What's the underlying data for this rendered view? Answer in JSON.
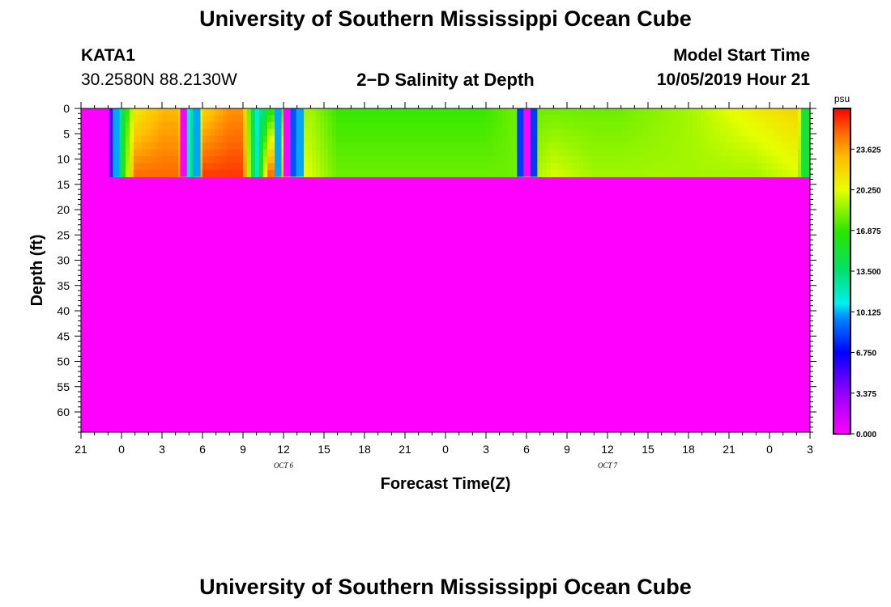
{
  "header": {
    "title": "University of Southern Mississippi Ocean Cube",
    "station": "KATA1",
    "coords": "30.2580N 88.2130W",
    "plot_title": "2−D Salinity at Depth",
    "model_start_label": "Model Start Time",
    "model_start_value": "10/05/2019 Hour 21"
  },
  "footer": {
    "title": "University of Southern Mississippi Ocean Cube"
  },
  "chart_data": {
    "type": "heatmap",
    "title": "2−D Salinity at Depth",
    "xlabel": "Forecast Time(Z)",
    "ylabel": "Depth (ft)",
    "x_tick_labels": [
      "21",
      "0",
      "3",
      "6",
      "9",
      "12",
      "15",
      "18",
      "21",
      "0",
      "3",
      "6",
      "9",
      "12",
      "15",
      "18",
      "21",
      "0",
      "3"
    ],
    "x_date_labels": [
      {
        "label": "OCT 6",
        "hours": 15
      },
      {
        "label": "OCT 7",
        "hours": 39
      }
    ],
    "x_range_hours": [
      0,
      54
    ],
    "y_tick_labels": [
      "0",
      "5",
      "10",
      "15",
      "20",
      "25",
      "30",
      "35",
      "40",
      "45",
      "50",
      "55",
      "60"
    ],
    "y_range": [
      0,
      64
    ],
    "data_depth_range_ft": [
      0,
      13.5
    ],
    "below_data_value": 0,
    "colorbar": {
      "unit": "psu",
      "ticks": [
        "0.000",
        "3.375",
        "6.750",
        "10.125",
        "13.500",
        "16.875",
        "20.250",
        "23.625"
      ],
      "min": 0,
      "max": 27
    },
    "salinity_profile": {
      "hours": [
        0,
        2,
        2.5,
        4,
        6,
        7.3,
        8,
        9,
        11,
        12,
        13,
        14,
        15,
        17,
        18,
        19,
        20,
        21,
        23,
        24,
        26,
        28,
        30,
        32,
        35,
        38,
        40,
        45,
        50,
        53,
        54
      ],
      "surface": [
        0,
        0,
        10,
        21,
        23,
        23,
        10,
        22,
        24,
        24,
        11,
        16,
        18,
        19,
        18,
        17,
        17,
        17,
        17,
        17,
        17,
        17,
        17,
        18,
        18,
        18,
        18,
        19,
        21,
        22,
        15
      ],
      "bottom": [
        0,
        0,
        10,
        25,
        25,
        25,
        10,
        26,
        26,
        26,
        11,
        26,
        22,
        20,
        19,
        18,
        18,
        18,
        18,
        18,
        18,
        18,
        18,
        18,
        20,
        19,
        19,
        19,
        19,
        20,
        15
      ]
    },
    "low_value_strips": [
      {
        "start_hours": 2.35,
        "end_hours": 2.85,
        "value": 10
      },
      {
        "start_hours": 7.35,
        "end_hours": 7.85,
        "value": 0
      },
      {
        "start_hours": 8.3,
        "end_hours": 8.85,
        "value": 10
      },
      {
        "start_hours": 14.35,
        "end_hours": 14.85,
        "value": 10
      },
      {
        "start_hours": 15.0,
        "end_hours": 15.5,
        "value": 0
      },
      {
        "start_hours": 15.5,
        "end_hours": 15.95,
        "value": 8.5
      },
      {
        "start_hours": 15.95,
        "end_hours": 16.5,
        "value": 10
      },
      {
        "start_hours": 32.3,
        "end_hours": 32.8,
        "value": 8
      },
      {
        "start_hours": 32.8,
        "end_hours": 33.3,
        "value": 0
      },
      {
        "start_hours": 33.3,
        "end_hours": 33.8,
        "value": 8
      },
      {
        "start_hours": 53.35,
        "end_hours": 53.85,
        "value": 15
      }
    ],
    "grid": false
  }
}
